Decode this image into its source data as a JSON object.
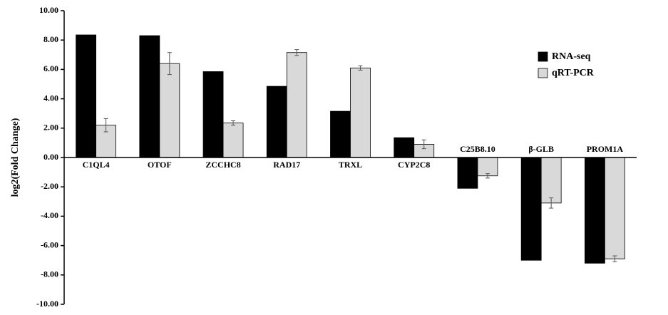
{
  "chart_data": {
    "type": "bar",
    "ylabel": "log2(Fold Change)",
    "categories": [
      "C1QL4",
      "OTOF",
      "ZCCHC8",
      "RAD17",
      "TRXL",
      "CYP2C8",
      "C25B8.10",
      "β-GLB",
      "PROM1A"
    ],
    "series": [
      {
        "name": "RNA-seq",
        "color": "#000000",
        "values": [
          8.35,
          8.3,
          5.85,
          4.85,
          3.15,
          1.35,
          -2.1,
          -7.0,
          -7.2
        ]
      },
      {
        "name": "qRT-PCR",
        "color": "#d9d9d9",
        "values": [
          2.2,
          6.4,
          2.35,
          7.15,
          6.1,
          0.9,
          -1.25,
          -3.1,
          -6.9
        ],
        "errors": [
          0.45,
          0.75,
          0.15,
          0.2,
          0.15,
          0.3,
          0.15,
          0.35,
          0.2
        ]
      }
    ],
    "ylim": [
      -10,
      10
    ],
    "yticks": [
      {
        "value": -10,
        "label": "-10.00"
      },
      {
        "value": -8,
        "label": "-8.00"
      },
      {
        "value": -6,
        "label": "-6.00"
      },
      {
        "value": -4,
        "label": "-4.00"
      },
      {
        "value": -2,
        "label": "-2.00"
      },
      {
        "value": 0,
        "label": "0.00"
      },
      {
        "value": 2,
        "label": "2.00"
      },
      {
        "value": 4,
        "label": "4.00"
      },
      {
        "value": 6,
        "label": "6.00"
      },
      {
        "value": 8,
        "label": "8.00"
      },
      {
        "value": 10,
        "label": "10.00"
      }
    ],
    "legend": "upper right"
  }
}
